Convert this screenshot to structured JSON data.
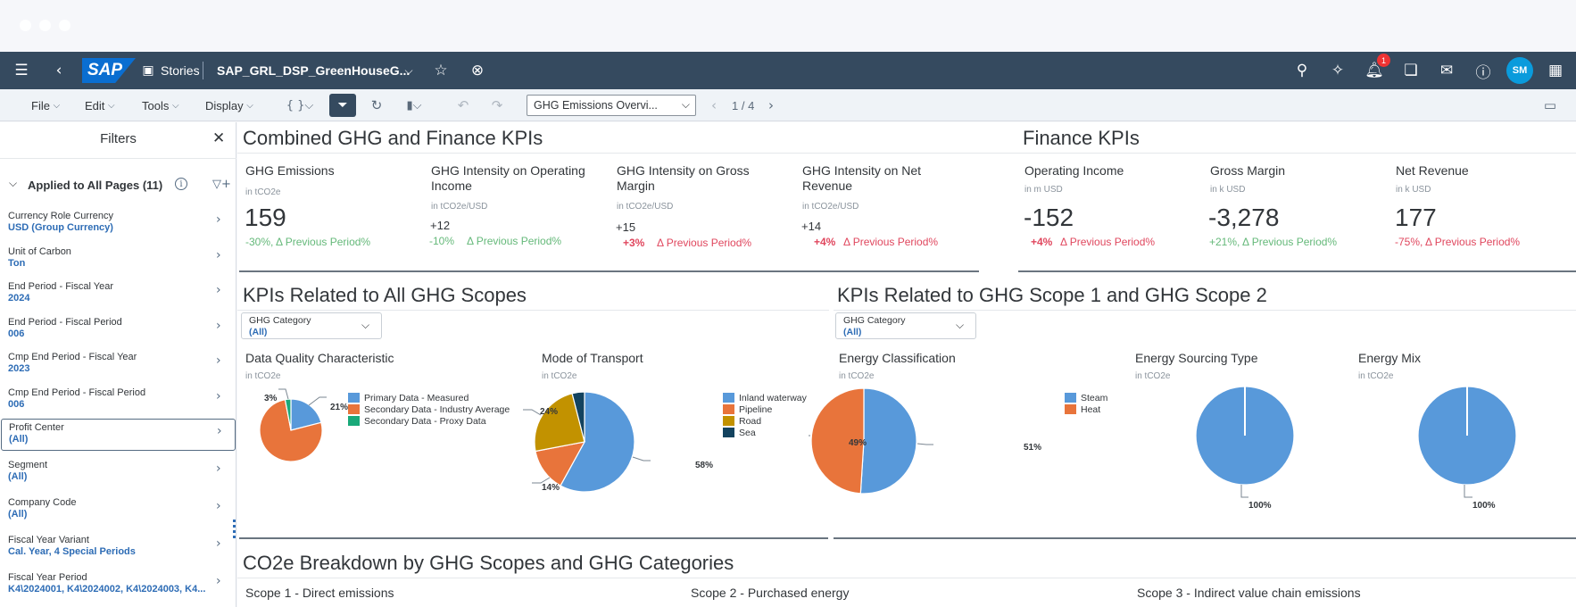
{
  "shell": {
    "stories": "Stories",
    "story_name": "SAP_GRL_DSP_GreenHouseG...",
    "notification_count": "1",
    "avatar_initials": "SM",
    "brand_color": "#354a5f"
  },
  "toolbar": {
    "menus": [
      "File",
      "Edit",
      "Tools",
      "Display"
    ],
    "page_select": "GHG Emissions Overvi...",
    "page_counter": "1 / 4"
  },
  "filters": {
    "title": "Filters",
    "applied": "Applied to All Pages (11)",
    "items": [
      {
        "label": "Currency Role Currency",
        "value": "USD (Group Currency)"
      },
      {
        "label": "Unit of Carbon",
        "value": "Ton"
      },
      {
        "label": "End Period - Fiscal Year",
        "value": "2024"
      },
      {
        "label": "End Period - Fiscal Period",
        "value": "006"
      },
      {
        "label": "Cmp End Period - Fiscal Year",
        "value": "2023"
      },
      {
        "label": "Cmp End Period - Fiscal Period",
        "value": "006"
      },
      {
        "label": "Profit Center",
        "value": "(All)"
      },
      {
        "label": "Segment",
        "value": "(All)"
      },
      {
        "label": "Company Code",
        "value": "(All)"
      },
      {
        "label": "Fiscal Year Variant",
        "value": "Cal. Year, 4 Special Periods"
      },
      {
        "label": "Fiscal Year Period",
        "value": "K4\\2024001, K4\\2024002, K4\\2024003, K4..."
      }
    ]
  },
  "combined": {
    "title": "Combined GHG and Finance KPIs",
    "kpis": [
      {
        "title_1": "GHG Emissions",
        "title_2": "",
        "unit": "in tCO2e",
        "value": "159",
        "delta": "-30%, Δ Previous Period%"
      },
      {
        "title_1": "GHG Intensity on Operating",
        "title_2": "Income",
        "unit": "in tCO2e/USD",
        "value": "+12",
        "delta_pct": "-10%",
        "delta_lbl": "Δ Previous Period%"
      },
      {
        "title_1": "GHG Intensity on Gross",
        "title_2": "Margin",
        "unit": "in tCO2e/USD",
        "value": "+15",
        "delta_pct": "+3%",
        "delta_lbl": "Δ Previous Period%"
      },
      {
        "title_1": "GHG Intensity on Net",
        "title_2": "Revenue",
        "unit": "in tCO2e/USD",
        "value": "+14",
        "delta_pct": "+4%",
        "delta_lbl": "Δ Previous Period%"
      }
    ]
  },
  "finance": {
    "title": "Finance KPIs",
    "kpis": [
      {
        "title": "Operating Income",
        "unit": "in m USD",
        "value": "-152",
        "delta_pct": "+4%",
        "delta_lbl": "Δ Previous Period%"
      },
      {
        "title": "Gross Margin",
        "unit": "in k USD",
        "value": "-3,278",
        "delta": "+21%, Δ Previous Period%"
      },
      {
        "title": "Net Revenue",
        "unit": "in k USD",
        "value": "177",
        "delta": "-75%, Δ Previous Period%"
      }
    ]
  },
  "all_scopes": {
    "title": "KPIs Related to All GHG Scopes",
    "dropdown_label": "GHG Category",
    "dropdown_value": "(All)"
  },
  "scope12": {
    "title": "KPIs Related to GHG Scope 1 and GHG Scope 2",
    "dropdown_label": "GHG Category",
    "dropdown_value": "(All)"
  },
  "breakdown": {
    "title": "CO2e Breakdown by GHG Scopes and GHG Categories",
    "scope1": "Scope 1 - Direct emissions",
    "scope2": "Scope 2 - Purchased energy",
    "scope3": "Scope 3 - Indirect value chain emissions"
  },
  "chart_data": [
    {
      "type": "pie",
      "title": "Data Quality Characteristic",
      "subtitle": "in tCO2e",
      "categories": [
        "Primary Data - Measured",
        "Secondary Data - Industry Average",
        "Secondary Data - Proxy Data"
      ],
      "values": [
        21,
        76,
        3
      ],
      "labels": [
        "21%",
        "",
        "3%"
      ],
      "colors": [
        "#5899da",
        "#e8743b",
        "#19a979"
      ]
    },
    {
      "type": "pie",
      "title": "Mode of Transport",
      "subtitle": "in tCO2e",
      "categories": [
        "Inland waterway",
        "Pipeline",
        "Road",
        "Sea"
      ],
      "values": [
        58,
        14,
        24,
        4
      ],
      "labels": [
        "58%",
        "14%",
        "24%",
        ""
      ],
      "colors": [
        "#5899da",
        "#e8743b",
        "#c29200",
        "#13435f"
      ]
    },
    {
      "type": "pie",
      "title": "Energy Classification",
      "subtitle": "in tCO2e",
      "categories": [
        "Steam",
        "Heat"
      ],
      "values": [
        51,
        49
      ],
      "labels": [
        "51%",
        "49%"
      ],
      "colors": [
        "#5899da",
        "#e8743b"
      ]
    },
    {
      "type": "pie",
      "title": "Energy Sourcing Type",
      "subtitle": "in tCO2e",
      "categories": [],
      "values": [
        100
      ],
      "labels": [
        "100%"
      ],
      "colors": [
        "#5899da"
      ]
    },
    {
      "type": "pie",
      "title": "Energy Mix",
      "subtitle": "in tCO2e",
      "categories": [],
      "values": [
        100
      ],
      "labels": [
        "100%"
      ],
      "colors": [
        "#5899da"
      ]
    }
  ]
}
